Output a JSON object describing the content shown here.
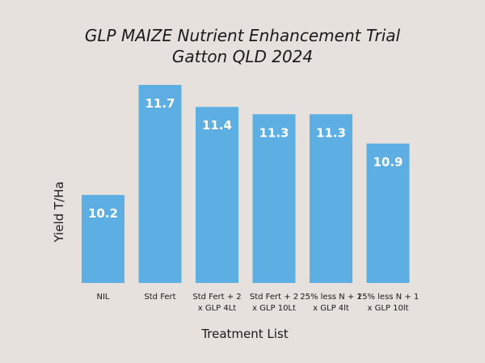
{
  "chart_data": {
    "type": "bar",
    "title_lines": [
      "GLP MAIZE Nutrient Enhancement Trial",
      "Gatton QLD 2024"
    ],
    "xlabel": "Treatment List",
    "ylabel": "Yield T/Ha",
    "categories": [
      [
        "NIL"
      ],
      [
        "Std Fert"
      ],
      [
        "Std Fert + 2",
        "x GLP 4Lt"
      ],
      [
        "Std Fert + 2",
        "x GLP 10Lt"
      ],
      [
        "25% less N + 1",
        "x GLP 4lt"
      ],
      [
        "25% less N + 1",
        "x GLP 10lt"
      ]
    ],
    "values": [
      10.2,
      11.7,
      11.4,
      11.3,
      11.3,
      10.9
    ],
    "value_labels": [
      "10.2",
      "11.7",
      "11.4",
      "11.3",
      "11.3",
      "10.9"
    ],
    "ylim": [
      9.0,
      11.7
    ],
    "grid": false,
    "colors": {
      "bar": "#5daee3",
      "label": "#ffffff",
      "text": "#1a1a1a"
    }
  }
}
